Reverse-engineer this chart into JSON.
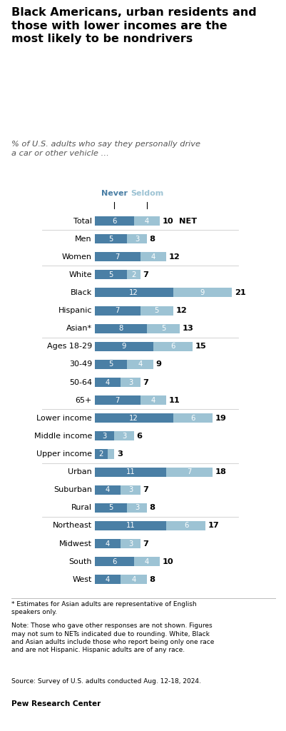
{
  "title": "Black Americans, urban residents and\nthose with lower incomes are the\nmost likely to be nondrivers",
  "subtitle": "% of U.S. adults who say they personally drive\na car or other vehicle …",
  "color_never": "#4a7fa5",
  "color_seldom": "#9dc3d4",
  "legend_never": "Never",
  "legend_seldom": "Seldom",
  "categories": [
    "Total",
    "Men",
    "Women",
    "White",
    "Black",
    "Hispanic",
    "Asian*",
    "Ages 18-29",
    "30-49",
    "50-64",
    "65+",
    "Lower income",
    "Middle income",
    "Upper income",
    "Urban",
    "Suburban",
    "Rural",
    "Northeast",
    "Midwest",
    "South",
    "West"
  ],
  "never": [
    6,
    5,
    7,
    5,
    12,
    7,
    8,
    9,
    5,
    4,
    7,
    12,
    3,
    2,
    11,
    4,
    5,
    11,
    4,
    6,
    4
  ],
  "seldom": [
    4,
    3,
    4,
    2,
    9,
    5,
    5,
    6,
    4,
    3,
    4,
    6,
    3,
    1,
    7,
    3,
    3,
    6,
    3,
    4,
    4
  ],
  "net": [
    10,
    8,
    12,
    7,
    21,
    12,
    13,
    15,
    9,
    7,
    11,
    19,
    6,
    3,
    18,
    7,
    8,
    17,
    7,
    10,
    8
  ],
  "sep_after_indices": [
    0,
    2,
    6,
    10,
    13,
    16
  ],
  "footnote1": "* Estimates for Asian adults are representative of English\nspeakers only.",
  "footnote2": "Note: Those who gave other responses are not shown. Figures\nmay not sum to NETs indicated due to rounding. White, Black\nand Asian adults include those who report being only one race\nand are not Hispanic. Hispanic adults are of any race.",
  "footnote3": "Source: Survey of U.S. adults conducted Aug. 12-18, 2024.",
  "source": "Pew Research Center"
}
